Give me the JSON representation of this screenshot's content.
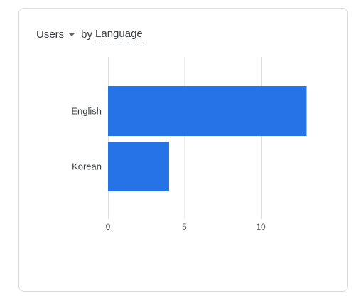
{
  "header": {
    "metric_label": "Users",
    "by_label": "by",
    "dimension_label": "Language"
  },
  "colors": {
    "bar": "#2673e8",
    "grid": "#dadce0",
    "axis_text": "#5f6368",
    "category_text": "#3c4043"
  },
  "chart_data": {
    "type": "bar",
    "orientation": "horizontal",
    "categories": [
      "English",
      "Korean"
    ],
    "values": [
      13,
      4
    ],
    "xticks": [
      0,
      5,
      10
    ],
    "xlim": [
      0,
      13
    ],
    "title": "",
    "xlabel": "",
    "ylabel": "",
    "grid": true
  }
}
